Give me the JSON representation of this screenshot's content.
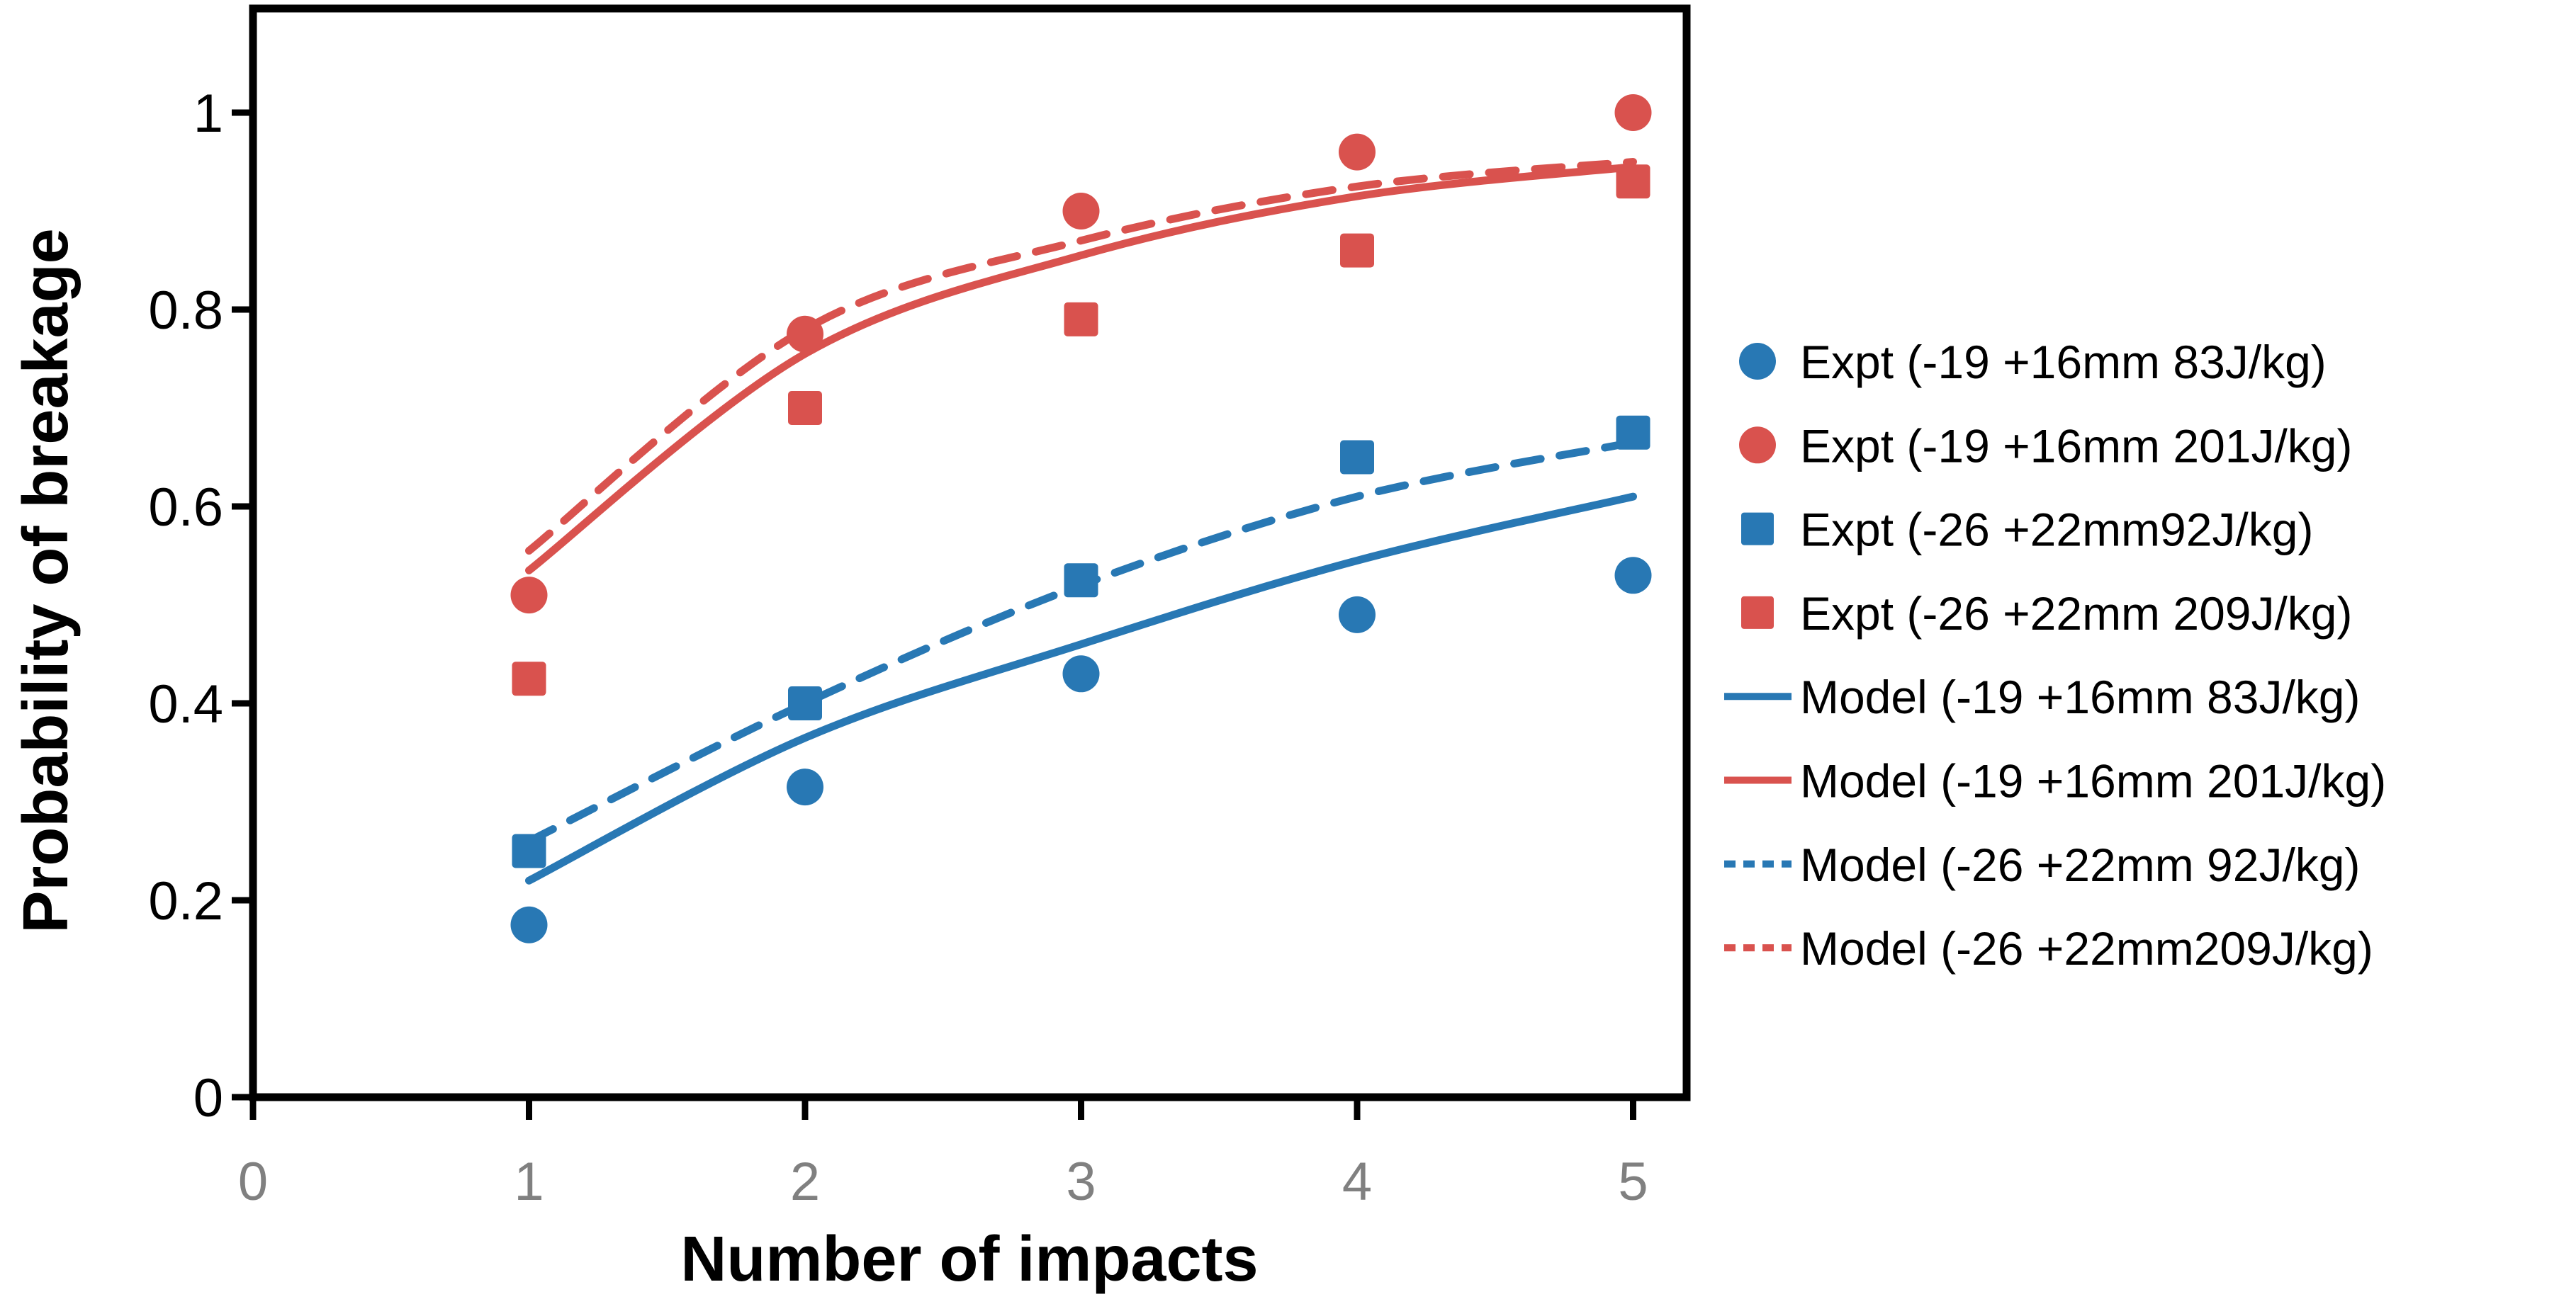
{
  "chart_data": {
    "type": "scatter",
    "title": "",
    "xlabel": "Number of impacts",
    "ylabel": "Probability of breakage",
    "x": [
      1,
      2,
      3,
      4,
      5
    ],
    "x_ticks": [
      "0",
      "1",
      "2",
      "3",
      "4",
      "5"
    ],
    "x_tick_values": [
      0,
      1,
      2,
      3,
      4,
      5
    ],
    "y_ticks": [
      "0",
      "0.2",
      "0.4",
      "0.6",
      "0.8",
      "1"
    ],
    "y_tick_values": [
      0,
      0.2,
      0.4,
      0.6,
      0.8,
      1
    ],
    "xlim": [
      0,
      5.19
    ],
    "ylim": [
      0,
      1.106
    ],
    "grid": false,
    "legend_position": "right",
    "colors": {
      "blue": "#2878B4",
      "red": "#D9524E",
      "x_tick_label": "#808080",
      "axis": "#000000"
    },
    "series": [
      {
        "name": "Expt (-19 +16mm 83J/kg)",
        "kind": "scatter",
        "marker": "circle",
        "color": "blue",
        "values": [
          0.175,
          0.315,
          0.43,
          0.49,
          0.53
        ]
      },
      {
        "name": "Expt (-19 +16mm 201J/kg)",
        "kind": "scatter",
        "marker": "circle",
        "color": "red",
        "values": [
          0.51,
          0.775,
          0.9,
          0.96,
          1.0
        ]
      },
      {
        "name": "Expt (-26 +22mm92J/kg)",
        "kind": "scatter",
        "marker": "square",
        "color": "blue",
        "values": [
          0.25,
          0.4,
          0.525,
          0.65,
          0.675
        ]
      },
      {
        "name": "Expt (-26 +22mm 209J/kg)",
        "kind": "scatter",
        "marker": "square",
        "color": "red",
        "values": [
          0.425,
          0.7,
          0.79,
          0.86,
          0.93
        ]
      },
      {
        "name": "Model (-19 +16mm 83J/kg)",
        "kind": "line",
        "style": "solid",
        "color": "blue",
        "values": [
          0.22,
          0.365,
          0.46,
          0.545,
          0.61
        ]
      },
      {
        "name": "Model (-19 +16mm 201J/kg)",
        "kind": "line",
        "style": "solid",
        "color": "red",
        "values": [
          0.535,
          0.755,
          0.855,
          0.915,
          0.945
        ]
      },
      {
        "name": "Model (-26 +22mm 92J/kg)",
        "kind": "line",
        "style": "dashed",
        "color": "blue",
        "values": [
          0.26,
          0.4,
          0.52,
          0.61,
          0.665
        ]
      },
      {
        "name": "Model (-26 +22mm209J/kg)",
        "kind": "line",
        "style": "dashed",
        "color": "red",
        "values": [
          0.555,
          0.78,
          0.87,
          0.925,
          0.95
        ]
      }
    ]
  }
}
